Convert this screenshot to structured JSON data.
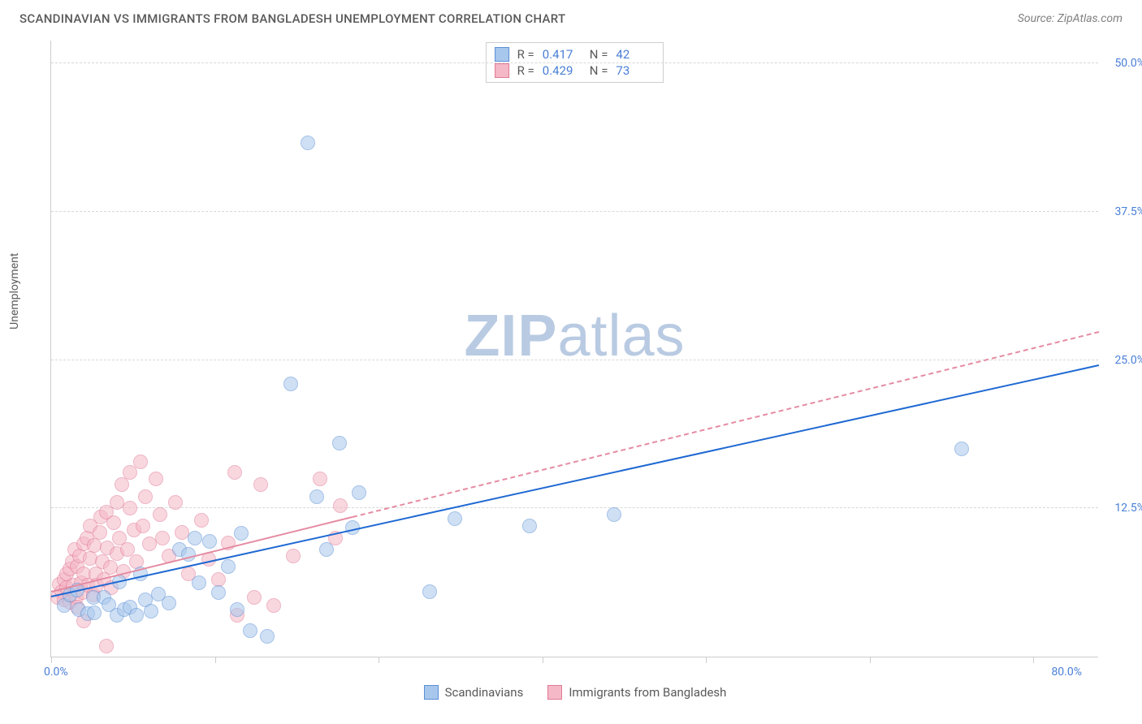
{
  "header": {
    "title": "SCANDINAVIAN VS IMMIGRANTS FROM BANGLADESH UNEMPLOYMENT CORRELATION CHART",
    "source": "Source: ZipAtlas.com"
  },
  "chart": {
    "type": "scatter",
    "ylabel": "Unemployment",
    "xlim": [
      0,
      80
    ],
    "ylim": [
      0,
      52
    ],
    "xtick_positions": [
      0,
      12.5,
      25,
      37.5,
      50,
      62.5,
      75
    ],
    "yticks": [
      {
        "v": 12.5,
        "label": "12.5%"
      },
      {
        "v": 25.0,
        "label": "25.0%"
      },
      {
        "v": 37.5,
        "label": "37.5%"
      },
      {
        "v": 50.0,
        "label": "50.0%"
      }
    ],
    "x_origin_label": "0.0%",
    "x_max_label": "80.0%",
    "background_color": "#ffffff",
    "grid_color": "#d8d8d8",
    "axis_color": "#cccccc",
    "tick_label_color": "#4a7fd6",
    "point_radius": 9,
    "point_opacity": 0.55,
    "series": [
      {
        "name": "Scandinavians",
        "fill": "#a8c7ec",
        "stroke": "#5b8fd6",
        "trend": {
          "x1": 0,
          "y1": 5.0,
          "x2": 80,
          "y2": 24.5,
          "color": "#1f69d2",
          "width": 2,
          "dashed": false
        },
        "stats": {
          "r_label": "R =",
          "r_value": "0.417",
          "n_label": "N =",
          "n_value": "42"
        },
        "points": [
          [
            1.0,
            4.3
          ],
          [
            1.4,
            5.2
          ],
          [
            2.1,
            4.0
          ],
          [
            2.0,
            5.6
          ],
          [
            2.8,
            3.6
          ],
          [
            3.2,
            5.0
          ],
          [
            3.3,
            3.7
          ],
          [
            4.0,
            5.0
          ],
          [
            4.4,
            4.4
          ],
          [
            5.0,
            3.5
          ],
          [
            5.6,
            4.0
          ],
          [
            5.2,
            6.3
          ],
          [
            6.0,
            4.2
          ],
          [
            6.5,
            3.5
          ],
          [
            6.8,
            7.0
          ],
          [
            7.2,
            4.8
          ],
          [
            7.6,
            3.8
          ],
          [
            8.2,
            5.3
          ],
          [
            9.0,
            4.5
          ],
          [
            9.8,
            9.0
          ],
          [
            10.5,
            8.6
          ],
          [
            11.0,
            10.0
          ],
          [
            11.3,
            6.2
          ],
          [
            12.1,
            9.7
          ],
          [
            12.8,
            5.4
          ],
          [
            13.5,
            7.6
          ],
          [
            14.2,
            4.0
          ],
          [
            14.5,
            10.4
          ],
          [
            15.2,
            2.2
          ],
          [
            16.5,
            1.7
          ],
          [
            18.3,
            23.0
          ],
          [
            19.6,
            43.3
          ],
          [
            20.3,
            13.5
          ],
          [
            21.0,
            9.0
          ],
          [
            22.0,
            18.0
          ],
          [
            23.0,
            10.9
          ],
          [
            23.5,
            13.8
          ],
          [
            28.9,
            5.5
          ],
          [
            30.8,
            11.6
          ],
          [
            36.5,
            11.0
          ],
          [
            43.0,
            12.0
          ],
          [
            69.5,
            17.5
          ]
        ]
      },
      {
        "name": "Immigrants from Bangladesh",
        "fill": "#f5b8c6",
        "stroke": "#e07a96",
        "trend": {
          "x1": 0,
          "y1": 5.4,
          "x2": 80,
          "y2": 27.3,
          "color": "#e58ba2",
          "width": 2,
          "dashed_after_x": 23
        },
        "stats": {
          "r_label": "R =",
          "r_value": "0.429",
          "n_label": "N =",
          "n_value": "73"
        },
        "points": [
          [
            0.5,
            5.0
          ],
          [
            0.6,
            6.1
          ],
          [
            0.8,
            5.5
          ],
          [
            1.0,
            4.8
          ],
          [
            1.0,
            6.5
          ],
          [
            1.2,
            7.0
          ],
          [
            1.2,
            5.8
          ],
          [
            1.4,
            7.4
          ],
          [
            1.4,
            4.6
          ],
          [
            1.6,
            8.0
          ],
          [
            1.7,
            6.0
          ],
          [
            1.8,
            9.0
          ],
          [
            1.9,
            5.0
          ],
          [
            2.0,
            7.6
          ],
          [
            2.0,
            4.2
          ],
          [
            2.2,
            8.5
          ],
          [
            2.3,
            6.2
          ],
          [
            2.4,
            5.4
          ],
          [
            2.5,
            9.5
          ],
          [
            2.5,
            7.0
          ],
          [
            2.7,
            10.0
          ],
          [
            2.8,
            6.0
          ],
          [
            2.5,
            3.0
          ],
          [
            3.0,
            8.3
          ],
          [
            3.0,
            11.0
          ],
          [
            3.2,
            5.2
          ],
          [
            3.3,
            9.4
          ],
          [
            3.4,
            7.0
          ],
          [
            3.5,
            6.0
          ],
          [
            3.7,
            10.5
          ],
          [
            3.8,
            11.8
          ],
          [
            3.9,
            8.0
          ],
          [
            4.0,
            6.5
          ],
          [
            4.2,
            12.2
          ],
          [
            4.3,
            9.2
          ],
          [
            4.5,
            7.5
          ],
          [
            4.6,
            5.8
          ],
          [
            4.8,
            11.3
          ],
          [
            5.0,
            8.7
          ],
          [
            5.0,
            13.0
          ],
          [
            5.2,
            10.0
          ],
          [
            5.4,
            14.5
          ],
          [
            5.5,
            7.2
          ],
          [
            5.8,
            9.0
          ],
          [
            6.0,
            12.5
          ],
          [
            6.0,
            15.5
          ],
          [
            6.3,
            10.7
          ],
          [
            6.5,
            8.0
          ],
          [
            6.8,
            16.4
          ],
          [
            7.0,
            11.0
          ],
          [
            7.2,
            13.5
          ],
          [
            7.5,
            9.5
          ],
          [
            8.0,
            15.0
          ],
          [
            8.3,
            12.0
          ],
          [
            8.5,
            10.0
          ],
          [
            9.0,
            8.5
          ],
          [
            9.5,
            13.0
          ],
          [
            10.0,
            10.5
          ],
          [
            10.5,
            7.0
          ],
          [
            11.5,
            11.5
          ],
          [
            12.0,
            8.2
          ],
          [
            12.8,
            6.5
          ],
          [
            13.5,
            9.6
          ],
          [
            14.0,
            15.5
          ],
          [
            14.2,
            3.5
          ],
          [
            15.5,
            5.0
          ],
          [
            16.0,
            14.5
          ],
          [
            17.0,
            4.3
          ],
          [
            18.5,
            8.5
          ],
          [
            20.5,
            15.0
          ],
          [
            21.7,
            10.0
          ],
          [
            22.1,
            12.7
          ],
          [
            4.2,
            0.9
          ]
        ]
      }
    ],
    "legend_bottom": [
      {
        "label": "Scandinavians",
        "fill": "#a8c7ec",
        "stroke": "#5b8fd6"
      },
      {
        "label": "Immigrants from Bangladesh",
        "fill": "#f5b8c6",
        "stroke": "#e07a96"
      }
    ],
    "watermark": {
      "zip": "ZIP",
      "atlas": "atlas"
    }
  }
}
